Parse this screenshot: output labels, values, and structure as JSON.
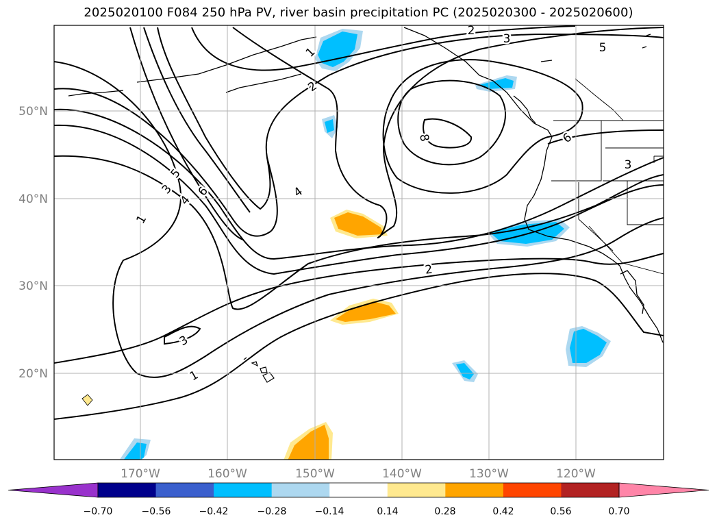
{
  "title": "2025020100 F084 250 hPa PV, river basin precipitation PC (2025020300 - 2025020600)",
  "longitude_labels": [
    "170°W",
    "160°W",
    "150°W",
    "140°W",
    "130°W",
    "120°W"
  ],
  "latitude_labels": [
    "50°N",
    "40°N",
    "30°N",
    "20°N"
  ],
  "colorbar": {
    "ticks": [
      "−0.70",
      "−0.56",
      "−0.42",
      "−0.28",
      "−0.14",
      "0.14",
      "0.28",
      "0.42",
      "0.56",
      "0.70"
    ],
    "colors": [
      "#9932cc",
      "#00008b",
      "#3a5fcd",
      "#00bfff",
      "#add8f0",
      "#ffffff",
      "#ffe98f",
      "#ffa500",
      "#ff4500",
      "#b22222",
      "#ff85a8"
    ]
  },
  "contour_labels": [
    "1",
    "2",
    "3",
    "5",
    "8",
    "6",
    "2",
    "3",
    "1",
    "3",
    "4",
    "5",
    "6",
    "4",
    "2",
    "3",
    "1"
  ],
  "colors": {
    "contour": "#000000",
    "grid": "#b0b0b0",
    "axis_label": "#808080"
  }
}
